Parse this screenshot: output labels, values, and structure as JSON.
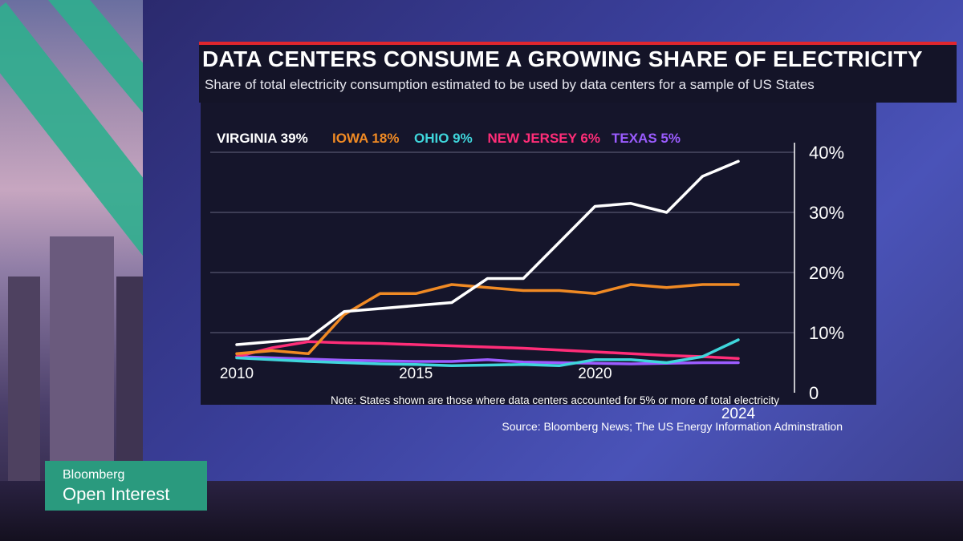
{
  "title": "DATA CENTERS CONSUME A GROWING SHARE OF ELECTRICITY",
  "subtitle": "Share of total electricity consumption estimated to be used by data centers for a sample of US States",
  "note": "Note: States shown are those where data centers accounted for 5% or more of total electricity",
  "source": "Source: Bloomberg News; The US Energy Information Adminstration",
  "branding": {
    "brand": "Bloomberg",
    "show": "Open Interest"
  },
  "colors": {
    "accent": "#e0262d",
    "panel": "#15152b",
    "logo": "#2a9a7e"
  },
  "chart_data": {
    "type": "line",
    "title": "DATA CENTERS CONSUME A GROWING SHARE OF ELECTRICITY",
    "xlabel": "",
    "ylabel": "",
    "xlim": [
      2010,
      2024
    ],
    "ylim": [
      0,
      40
    ],
    "x_ticks": [
      {
        "value": 2010,
        "label": "2010"
      },
      {
        "value": 2015,
        "label": "2015"
      },
      {
        "value": 2020,
        "label": "2020"
      },
      {
        "value": 2024,
        "label": "2024"
      }
    ],
    "y_ticks": [
      {
        "value": 0,
        "label": "0"
      },
      {
        "value": 10,
        "label": "10%"
      },
      {
        "value": 20,
        "label": "20%"
      },
      {
        "value": 30,
        "label": "30%"
      },
      {
        "value": 40,
        "label": "40%"
      }
    ],
    "grid": true,
    "legend_position": "top",
    "x": [
      2010,
      2011,
      2012,
      2013,
      2014,
      2015,
      2016,
      2017,
      2018,
      2019,
      2020,
      2021,
      2022,
      2023,
      2024
    ],
    "series": [
      {
        "name": "VIRGINIA",
        "legend": "VIRGINIA 39%",
        "color": "#ffffff",
        "values": [
          8,
          8.5,
          9,
          13.5,
          14,
          14.5,
          15,
          19,
          19,
          25,
          31,
          31.5,
          30,
          36,
          38.5
        ]
      },
      {
        "name": "IOWA",
        "legend": "IOWA 18%",
        "color": "#f08a24",
        "values": [
          6.5,
          7,
          6.5,
          13,
          16.5,
          16.5,
          18,
          17.5,
          17,
          17,
          16.5,
          18,
          17.5,
          18,
          18
        ]
      },
      {
        "name": "OHIO",
        "legend": "OHIO 9%",
        "color": "#3fd6dc",
        "values": [
          5.8,
          5.5,
          5.2,
          5,
          4.8,
          4.7,
          4.5,
          4.6,
          4.7,
          4.5,
          5.5,
          5.5,
          5,
          6,
          8.8
        ]
      },
      {
        "name": "NEW JERSEY",
        "legend": "NEW JERSEY 6%",
        "color": "#ff2d78",
        "values": [
          6,
          7.5,
          8.5,
          8.3,
          8.2,
          8,
          7.8,
          7.6,
          7.4,
          7.1,
          6.8,
          6.5,
          6.2,
          6,
          5.7
        ]
      },
      {
        "name": "TEXAS",
        "legend": "TEXAS 5%",
        "color": "#9b5cff",
        "values": [
          6,
          5.8,
          5.6,
          5.4,
          5.3,
          5.2,
          5.2,
          5.5,
          5.1,
          5.0,
          4.9,
          4.8,
          4.9,
          5.0,
          5.0
        ]
      }
    ]
  }
}
